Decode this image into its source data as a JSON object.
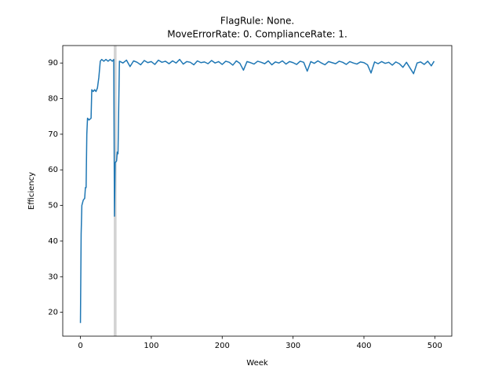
{
  "chart_data": {
    "type": "line",
    "title": [
      "FlagRule: None.",
      "MoveErrorRate: 0. ComplianceRate: 1."
    ],
    "xlabel": "Week",
    "ylabel": "Efficiency",
    "x": [
      0,
      1,
      2,
      4,
      6,
      7,
      8,
      9,
      10,
      12,
      15,
      16,
      18,
      20,
      22,
      24,
      26,
      28,
      30,
      33,
      36,
      39,
      42,
      45,
      47,
      48,
      49,
      51,
      52,
      53,
      55,
      60,
      65,
      70,
      75,
      80,
      85,
      90,
      95,
      100,
      105,
      110,
      115,
      120,
      125,
      130,
      135,
      140,
      145,
      150,
      155,
      160,
      165,
      170,
      175,
      180,
      185,
      190,
      195,
      200,
      205,
      210,
      215,
      220,
      225,
      230,
      235,
      240,
      245,
      250,
      255,
      260,
      265,
      270,
      275,
      280,
      285,
      290,
      295,
      300,
      305,
      310,
      315,
      320,
      325,
      330,
      335,
      340,
      345,
      350,
      355,
      360,
      365,
      370,
      375,
      380,
      385,
      390,
      395,
      400,
      405,
      410,
      415,
      420,
      425,
      430,
      435,
      440,
      445,
      450,
      455,
      460,
      465,
      470,
      475,
      480,
      485,
      490,
      495,
      499
    ],
    "series": [
      {
        "color": "#1f77b4",
        "values": [
          17,
          42,
          50,
          51.5,
          52,
          55,
          55,
          70,
          74.5,
          74,
          74.5,
          82.5,
          82,
          82.5,
          82,
          83,
          86,
          90.5,
          91,
          90.5,
          91,
          90.5,
          91,
          90.5,
          91,
          47,
          62,
          62.5,
          65,
          64.5,
          90.5,
          90,
          90.8,
          89,
          90.6,
          90.2,
          89.5,
          90.7,
          90.1,
          90.4,
          89.6,
          90.8,
          90.2,
          90.5,
          89.8,
          90.6,
          90,
          91,
          89.7,
          90.4,
          90.2,
          89.5,
          90.6,
          90.1,
          90.3,
          89.8,
          90.7,
          90,
          90.4,
          89.6,
          90.5,
          90.2,
          89.4,
          90.6,
          89.9,
          88,
          90.4,
          90.1,
          89.7,
          90.5,
          90.2,
          89.8,
          90.6,
          89.5,
          90.3,
          90,
          90.6,
          89.7,
          90.4,
          90.1,
          89.6,
          90.5,
          90.2,
          87.7,
          90.4,
          89.9,
          90.6,
          90,
          89.5,
          90.4,
          90.1,
          89.8,
          90.5,
          90.2,
          89.6,
          90.4,
          90,
          89.7,
          90.3,
          90.1,
          89.5,
          87.2,
          90.3,
          89.8,
          90.4,
          89.9,
          90.2,
          89.4,
          90.3,
          89.8,
          88.8,
          90.2,
          88.6,
          87,
          90,
          90.3,
          89.6,
          90.5,
          89.2,
          90.5
        ]
      }
    ],
    "highlight_span": [
      47,
      51
    ],
    "highlight_color": "#d3d3d3",
    "xlim": [
      -24.95,
      523.95
    ],
    "xticks": [
      0,
      100,
      200,
      300,
      400,
      500
    ],
    "ylim": [
      13.3,
      94.9
    ],
    "yticks": [
      20,
      30,
      40,
      50,
      60,
      70,
      80,
      90
    ]
  }
}
